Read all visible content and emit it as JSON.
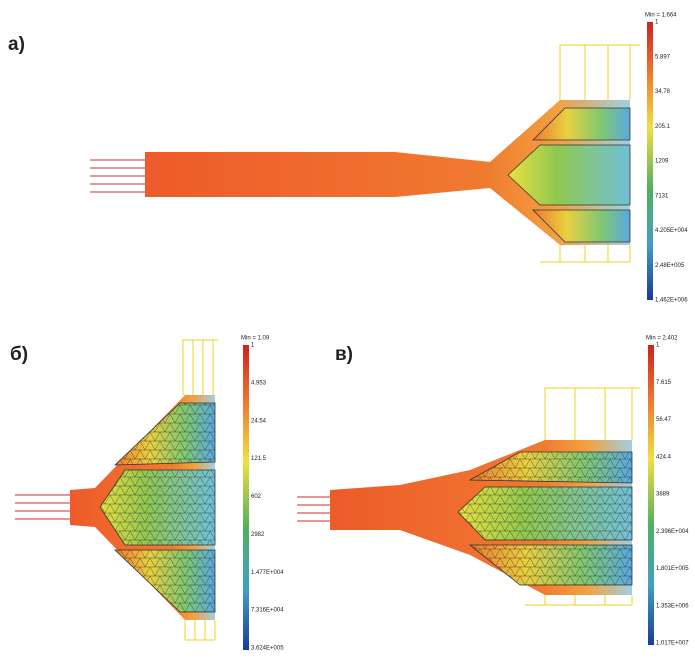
{
  "panels": [
    {
      "label": "а)",
      "min": "Min = 1.664",
      "scale": [
        "1",
        "5.897",
        "34.78",
        "205.1",
        "1209",
        "7131",
        "4.205E+004",
        "2.48E+005",
        "1.462E+006"
      ]
    },
    {
      "label": "б)",
      "min": "Min = 1.09",
      "scale": [
        "1",
        "4.953",
        "24.54",
        "121.5",
        "602",
        "2982",
        "1.477E+004",
        "7.316E+004",
        "3.624E+005"
      ]
    },
    {
      "label": "в)",
      "min": "Min = 2.402",
      "scale": [
        "1",
        "7.615",
        "56.47",
        "424.4",
        "3889",
        "2.396E+004",
        "1.801E+005",
        "1.353E+006",
        "1.017E+007"
      ]
    }
  ]
}
